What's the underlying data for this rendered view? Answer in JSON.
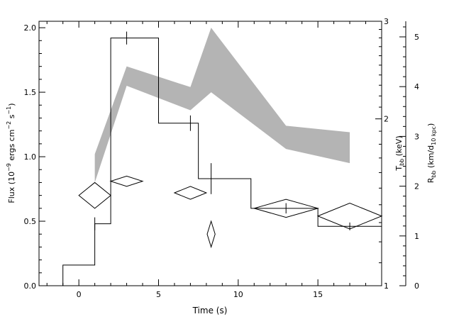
{
  "chart_data": {
    "type": "line",
    "title": "",
    "xlabel": "Time (s)",
    "xlim": [
      -2.5,
      19
    ],
    "x_ticks": [
      "0",
      "5",
      "10",
      "15"
    ],
    "ylabel_left": {
      "main": "Flux (10",
      "exp1": "−9",
      "mid": " ergs cm",
      "exp2": "−2",
      "mid2": " s",
      "exp3": "−1",
      "end": ")"
    },
    "ylim_left": [
      0,
      2.05
    ],
    "y_ticks_left": [
      "0.0",
      "0.5",
      "1.0",
      "1.5",
      "2.0"
    ],
    "ylabel_right1": {
      "main": "T",
      "sub": "bb",
      "end": " (keV)"
    },
    "y_ticks_right1": [
      "1",
      "2",
      "3"
    ],
    "ylabel_right2": {
      "main": "R",
      "sub": "bb",
      "mid": " (km/d",
      "sub2": "10 kpc",
      "end": ")"
    },
    "y_ticks_right2": [
      "0",
      "1",
      "2",
      "3",
      "4",
      "5"
    ],
    "series": [
      {
        "kind": "step",
        "steps": [
          {
            "x0": -1,
            "x1": 1,
            "y": 0.16
          },
          {
            "x0": 1,
            "x1": 2,
            "y": 0.48
          },
          {
            "x0": 2,
            "x1": 5,
            "y": 1.92
          },
          {
            "x0": 5,
            "x1": 7.5,
            "y": 1.26
          },
          {
            "x0": 7.5,
            "x1": 10.8,
            "y": 0.83
          },
          {
            "x0": 10.8,
            "x1": 15,
            "y": 0.6
          },
          {
            "x0": 15,
            "x1": 19,
            "y": 0.46
          }
        ],
        "errors": [
          {
            "x": 1,
            "y": 0.48,
            "dy": 0.05
          },
          {
            "x": 3,
            "y": 1.92,
            "dy": 0.05
          },
          {
            "x": 7,
            "y": 1.26,
            "dy": 0.06
          },
          {
            "x": 8.3,
            "y": 0.83,
            "dy": 0.12
          },
          {
            "x": 13,
            "y": 0.6,
            "dy": 0.04
          },
          {
            "x": 17,
            "y": 0.46,
            "dy": 0.03
          }
        ]
      },
      {
        "kind": "band",
        "points": [
          {
            "x": 1,
            "lo": 0.8,
            "hi": 1.02
          },
          {
            "x": 3,
            "lo": 1.55,
            "hi": 1.7
          },
          {
            "x": 7,
            "lo": 1.36,
            "hi": 1.54
          },
          {
            "x": 8.3,
            "lo": 1.5,
            "hi": 2.0
          },
          {
            "x": 13,
            "lo": 1.06,
            "hi": 1.24
          },
          {
            "x": 17,
            "lo": 0.95,
            "hi": 1.19
          }
        ]
      },
      {
        "kind": "diamonds",
        "points": [
          {
            "x": 1,
            "y": 0.7,
            "dx": 1,
            "dy": 0.1
          },
          {
            "x": 3,
            "y": 0.81,
            "dx": 1,
            "dy": 0.04
          },
          {
            "x": 7,
            "y": 0.72,
            "dx": 1,
            "dy": 0.05
          },
          {
            "x": 8.3,
            "y": 0.4,
            "dx": 0.25,
            "dy": 0.1
          },
          {
            "x": 13,
            "y": 0.6,
            "dx": 2,
            "dy": 0.07
          },
          {
            "x": 17,
            "y": 0.54,
            "dx": 2,
            "dy": 0.1
          }
        ]
      }
    ],
    "grid": false,
    "legend": "none"
  }
}
